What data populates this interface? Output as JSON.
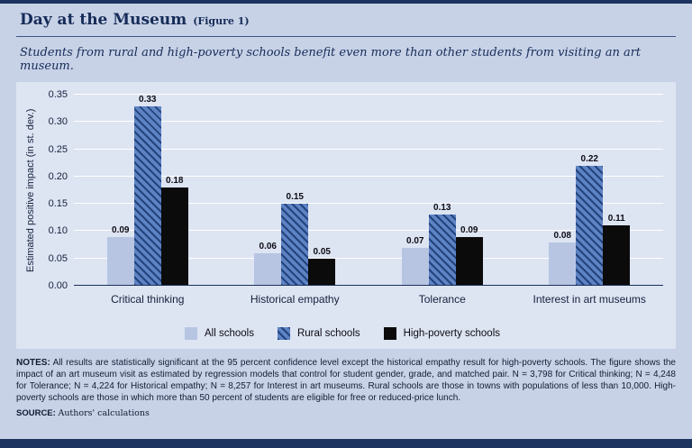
{
  "header": {
    "title": "Day at the Museum",
    "figure_label": "(Figure 1)",
    "subtitle": "Students from rural and high-poverty schools benefit even more than other students from visiting an art museum."
  },
  "chart_data": {
    "type": "bar",
    "title": "Day at the Museum (Figure 1)",
    "categories": [
      "Critical thinking",
      "Historical empathy",
      "Tolerance",
      "Interest in art museums"
    ],
    "series": [
      {
        "name": "All schools",
        "color": "#b7c5e3",
        "values": [
          0.09,
          0.06,
          0.07,
          0.08
        ]
      },
      {
        "name": "Rural schools",
        "color": "#5d83c4",
        "pattern": "diagonal-hatch",
        "hatch_color": "#24437c",
        "values": [
          0.33,
          0.15,
          0.13,
          0.22
        ]
      },
      {
        "name": "High-poverty schools",
        "color": "#0b0b0b",
        "values": [
          0.18,
          0.05,
          0.09,
          0.11
        ]
      }
    ],
    "ylabel": "Estimated positive impact (in st. dev.)",
    "ylim": [
      0,
      0.35
    ],
    "ytick_step": 0.05,
    "yticks": [
      "0.35",
      "0.30",
      "0.25",
      "0.20",
      "0.15",
      "0.10",
      "0.05",
      "0.00"
    ],
    "grid": true,
    "legend_position": "bottom",
    "value_label_decimals": 2
  },
  "notes": {
    "label": "NOTES:",
    "text": "All results are statistically significant at the 95 percent confidence level except the historical empathy result for high-poverty schools. The figure shows the impact of an art museum visit as estimated by regression models that control for student gender, grade, and matched pair. N = 3,798 for Critical thinking; N = 4,248 for Tolerance; N = 4,224 for Historical empathy; N = 8,257 for Interest in art museums. Rural schools are those in towns with populations of less than 10,000. High-poverty schools are those in which more than 50 percent of students are eligible for free or reduced-price lunch."
  },
  "source": {
    "label": "SOURCE:",
    "text": "Authors' calculations"
  }
}
